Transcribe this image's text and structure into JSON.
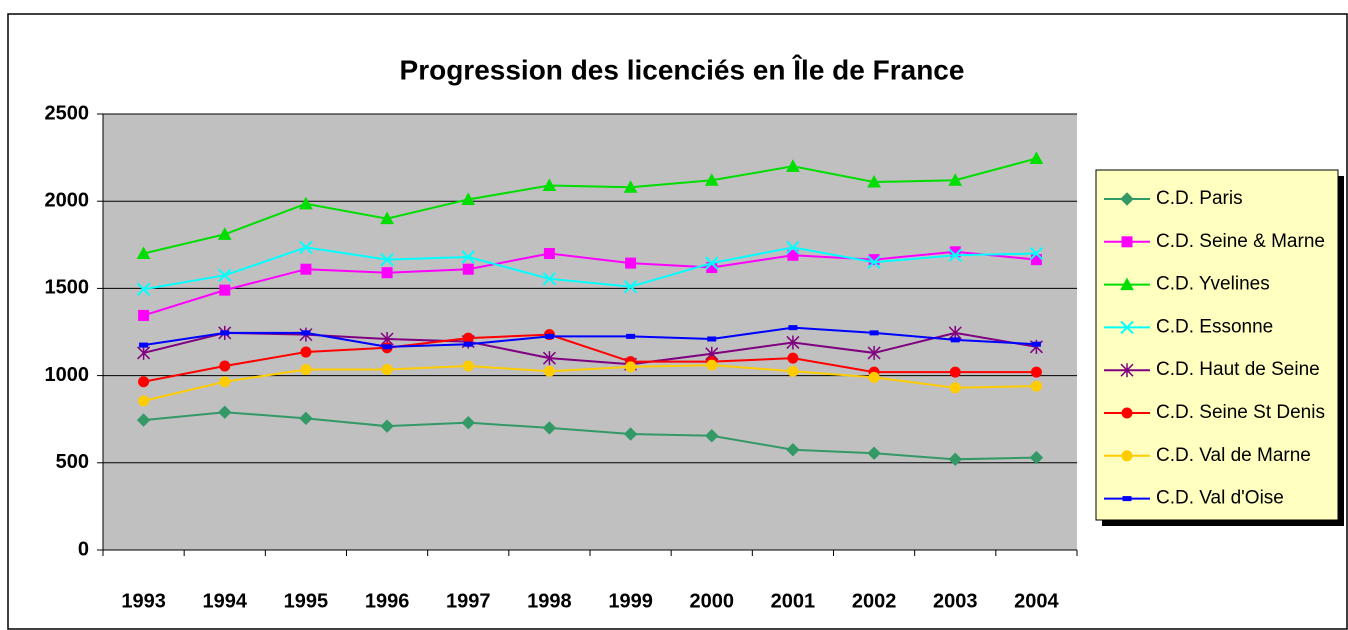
{
  "chart_data": {
    "type": "line",
    "title": "Progression des licenciés en Île de France",
    "categories": [
      "1993",
      "1994",
      "1995",
      "1996",
      "1997",
      "1998",
      "1999",
      "2000",
      "2001",
      "2002",
      "2003",
      "2004"
    ],
    "ylim": [
      0,
      2500
    ],
    "yticks": [
      0,
      500,
      1000,
      1500,
      2000,
      2500
    ],
    "grid": true,
    "legend": "right",
    "series": [
      {
        "name": "C.D. Paris",
        "color": "#339966",
        "marker": "diamond",
        "values": [
          745,
          790,
          755,
          710,
          730,
          700,
          665,
          655,
          575,
          555,
          520,
          530
        ]
      },
      {
        "name": "C.D. Seine & Marne",
        "color": "#ff00ff",
        "marker": "square",
        "values": [
          1345,
          1490,
          1610,
          1590,
          1610,
          1700,
          1645,
          1620,
          1690,
          1665,
          1710,
          1665
        ]
      },
      {
        "name": "C.D. Yvelines",
        "color": "#00dd00",
        "marker": "triangle",
        "values": [
          1700,
          1810,
          1985,
          1900,
          2010,
          2090,
          2080,
          2120,
          2200,
          2110,
          2120,
          2245
        ]
      },
      {
        "name": "C.D. Essonne",
        "color": "#00ffff",
        "marker": "x",
        "values": [
          1495,
          1575,
          1735,
          1665,
          1680,
          1555,
          1510,
          1645,
          1735,
          1650,
          1690,
          1700
        ]
      },
      {
        "name": "C.D. Haut de Seine",
        "color": "#800080",
        "marker": "star",
        "values": [
          1130,
          1245,
          1235,
          1210,
          1195,
          1100,
          1065,
          1125,
          1190,
          1130,
          1245,
          1165
        ]
      },
      {
        "name": "C.D. Seine St Denis",
        "color": "#ff0000",
        "marker": "circle",
        "values": [
          965,
          1055,
          1135,
          1160,
          1215,
          1235,
          1080,
          1080,
          1100,
          1020,
          1020,
          1020
        ]
      },
      {
        "name": "C.D. Val de Marne",
        "color": "#ffcc00",
        "marker": "circle",
        "values": [
          855,
          965,
          1035,
          1035,
          1055,
          1025,
          1050,
          1060,
          1025,
          990,
          930,
          940
        ]
      },
      {
        "name": "C.D. Val d'Oise",
        "color": "#0000ff",
        "marker": "dash",
        "values": [
          1175,
          1245,
          1245,
          1165,
          1180,
          1225,
          1225,
          1210,
          1275,
          1245,
          1205,
          1180
        ]
      }
    ]
  }
}
